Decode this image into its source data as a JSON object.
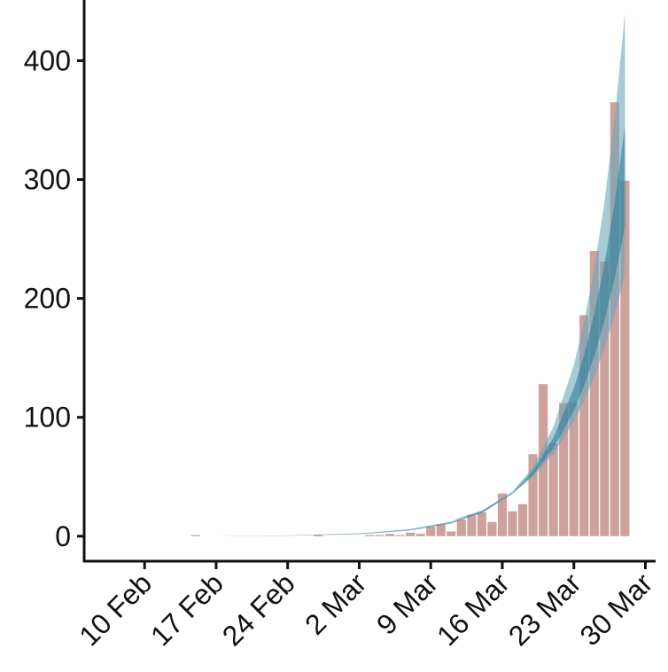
{
  "chart_data": {
    "type": "bar",
    "x": [
      "15 Feb",
      "27 Feb",
      "3 Mar",
      "4 Mar",
      "5 Mar",
      "6 Mar",
      "7 Mar",
      "8 Mar",
      "9 Mar",
      "10 Mar",
      "11 Mar",
      "12 Mar",
      "13 Mar",
      "14 Mar",
      "15 Mar",
      "16 Mar",
      "17 Mar",
      "18 Mar",
      "19 Mar",
      "20 Mar",
      "21 Mar",
      "22 Mar",
      "23 Mar",
      "24 Mar",
      "25 Mar",
      "26 Mar",
      "27 Mar",
      "28 Mar"
    ],
    "values": [
      1,
      1,
      1,
      1,
      2,
      1,
      3,
      2,
      8,
      10,
      4,
      14,
      18,
      20,
      12,
      36,
      21,
      27,
      69,
      128,
      78,
      112,
      112,
      186,
      240,
      231,
      365,
      299
    ],
    "color": "#c4918b",
    "bands": [
      {
        "color": "#6aa6bb",
        "x": [
          "17 Feb",
          "24 Feb",
          "2 Mar",
          "7 Mar",
          "11 Mar",
          "14 Mar",
          "17 Mar",
          "19 Mar",
          "21 Mar",
          "23 Mar",
          "24 Mar",
          "25 Mar",
          "26 Mar",
          "27 Mar",
          "28 Mar"
        ],
        "lower": [
          0.3,
          0.95,
          3,
          6.9,
          13.3,
          19,
          35.8,
          49.8,
          69.3,
          96.4,
          113.7,
          134,
          158,
          186.5,
          220
        ],
        "upper": [
          0.3,
          0.95,
          3,
          6.9,
          13.3,
          21.8,
          37.6,
          58,
          92,
          144,
          180,
          225,
          281,
          352,
          440
        ]
      },
      {
        "color": "#2f7f9a",
        "x": [
          "17 Feb",
          "24 Feb",
          "2 Mar",
          "7 Mar",
          "11 Mar",
          "14 Mar",
          "17 Mar",
          "19 Mar",
          "21 Mar",
          "23 Mar",
          "24 Mar",
          "25 Mar",
          "26 Mar",
          "27 Mar",
          "28 Mar"
        ],
        "lower": [
          0.1,
          0.41,
          1.7,
          4.8,
          10.7,
          19.8,
          35.9,
          51.5,
          73.8,
          105.7,
          126.5,
          151.5,
          181.4,
          217,
          260
        ],
        "upper": [
          0.2,
          0.68,
          2.4,
          5.9,
          12.2,
          20.9,
          36.6,
          54.9,
          82.7,
          124.4,
          152.5,
          187,
          229,
          281,
          345
        ]
      }
    ],
    "xlim": [
      "4 Feb",
      "31 Mar"
    ],
    "xticks": [
      "10 Feb",
      "17 Feb",
      "24 Feb",
      "2 Mar",
      "9 Mar",
      "16 Mar",
      "23 Mar",
      "30 Mar"
    ],
    "ylim": [
      -21,
      451
    ],
    "yticks": [
      0,
      100,
      200,
      300,
      400
    ]
  }
}
